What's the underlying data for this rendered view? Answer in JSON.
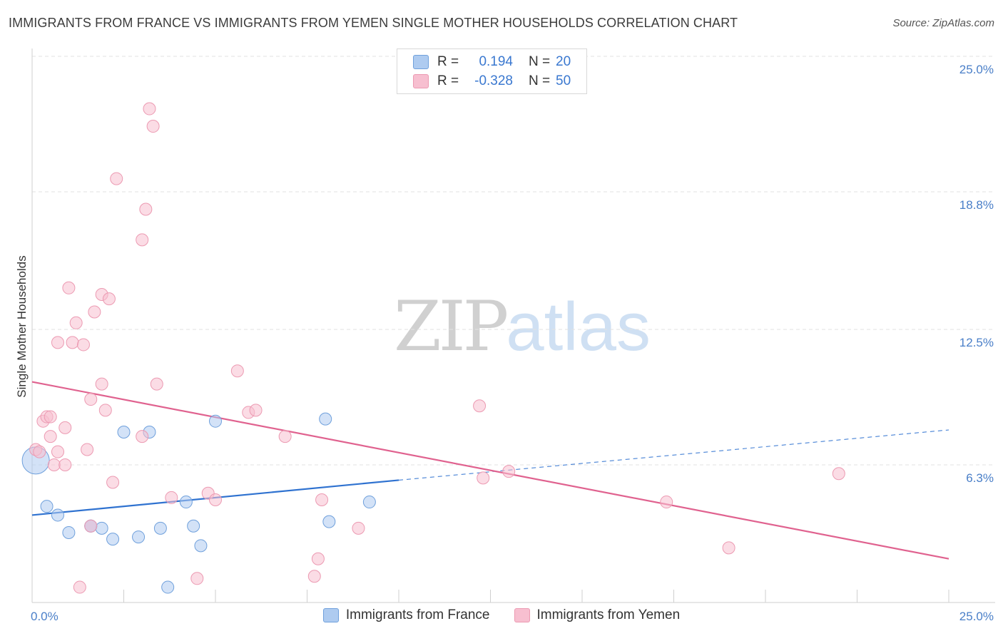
{
  "title": "IMMIGRANTS FROM FRANCE VS IMMIGRANTS FROM YEMEN SINGLE MOTHER HOUSEHOLDS CORRELATION CHART",
  "source": "Source: ZipAtlas.com",
  "watermark": {
    "zip": "ZIP",
    "atlas": "atlas"
  },
  "legend": {
    "rows": [
      {
        "r_label": "R =",
        "r_value": "0.194",
        "n_label": "N =",
        "n_value": "20",
        "color": "#aecbf0"
      },
      {
        "r_label": "R =",
        "r_value": "-0.328",
        "n_label": "N =",
        "n_value": "50",
        "color": "#f7bfd0"
      }
    ]
  },
  "bottom_legend": [
    {
      "label": "Immigrants from France",
      "color": "#aecbf0"
    },
    {
      "label": "Immigrants from Yemen",
      "color": "#f7bfd0"
    }
  ],
  "chart_data": {
    "type": "scatter",
    "title": "IMMIGRANTS FROM FRANCE VS IMMIGRANTS FROM YEMEN SINGLE MOTHER HOUSEHOLDS CORRELATION CHART",
    "xlabel": "",
    "ylabel": "Single Mother Households",
    "xlim": [
      0,
      25
    ],
    "ylim": [
      0,
      25
    ],
    "x_tick_labels": [
      {
        "value": 0,
        "label": "0.0%"
      },
      {
        "value": 25,
        "label": "25.0%"
      }
    ],
    "y_tick_labels": [
      {
        "value": 6.3,
        "label": "6.3%"
      },
      {
        "value": 12.5,
        "label": "12.5%"
      },
      {
        "value": 18.8,
        "label": "18.8%"
      },
      {
        "value": 25.0,
        "label": "25.0%"
      }
    ],
    "grid": true,
    "legend_position": "top-center",
    "series": [
      {
        "name": "Immigrants from France",
        "color": "#aecbf0",
        "stroke": "#6fa0dc",
        "line_color": "#2f72d0",
        "trend": {
          "x_start": 0,
          "y_start": 4.0,
          "x_solid_end": 10,
          "y_solid_end": 5.6,
          "x_end": 25,
          "y_end": 7.9
        },
        "points": [
          {
            "x": 0.1,
            "y": 6.5,
            "big": true
          },
          {
            "x": 0.4,
            "y": 4.4
          },
          {
            "x": 0.7,
            "y": 4.0
          },
          {
            "x": 1.0,
            "y": 3.2
          },
          {
            "x": 1.6,
            "y": 3.5
          },
          {
            "x": 1.9,
            "y": 3.4
          },
          {
            "x": 2.2,
            "y": 2.9
          },
          {
            "x": 2.5,
            "y": 7.8
          },
          {
            "x": 2.9,
            "y": 3.0
          },
          {
            "x": 3.2,
            "y": 7.8
          },
          {
            "x": 3.5,
            "y": 3.4
          },
          {
            "x": 4.2,
            "y": 4.6
          },
          {
            "x": 4.4,
            "y": 3.5
          },
          {
            "x": 4.6,
            "y": 2.6
          },
          {
            "x": 5.0,
            "y": 8.3
          },
          {
            "x": 8.1,
            "y": 3.7
          },
          {
            "x": 8.0,
            "y": 8.4
          },
          {
            "x": 9.2,
            "y": 4.6
          },
          {
            "x": 3.7,
            "y": 0.7
          },
          {
            "x": 1.6,
            "y": 3.5
          }
        ]
      },
      {
        "name": "Immigrants from Yemen",
        "color": "#f7bfd0",
        "stroke": "#ec9ab2",
        "line_color": "#e0628f",
        "trend": {
          "x_start": 0,
          "y_start": 10.1,
          "x_end": 25,
          "y_end": 2.0
        },
        "points": [
          {
            "x": 0.1,
            "y": 7.0
          },
          {
            "x": 0.2,
            "y": 6.9
          },
          {
            "x": 0.3,
            "y": 8.3
          },
          {
            "x": 0.4,
            "y": 8.5
          },
          {
            "x": 0.5,
            "y": 8.5
          },
          {
            "x": 0.5,
            "y": 7.6
          },
          {
            "x": 0.6,
            "y": 6.3
          },
          {
            "x": 0.7,
            "y": 6.9
          },
          {
            "x": 0.7,
            "y": 11.9
          },
          {
            "x": 0.9,
            "y": 8.0
          },
          {
            "x": 0.9,
            "y": 6.3
          },
          {
            "x": 1.0,
            "y": 14.4
          },
          {
            "x": 1.1,
            "y": 11.9
          },
          {
            "x": 1.2,
            "y": 12.8
          },
          {
            "x": 1.4,
            "y": 11.8
          },
          {
            "x": 1.5,
            "y": 7.0
          },
          {
            "x": 1.6,
            "y": 9.3
          },
          {
            "x": 1.7,
            "y": 13.3
          },
          {
            "x": 1.9,
            "y": 14.1
          },
          {
            "x": 1.9,
            "y": 10.0
          },
          {
            "x": 2.0,
            "y": 8.8
          },
          {
            "x": 2.1,
            "y": 13.9
          },
          {
            "x": 2.2,
            "y": 5.5
          },
          {
            "x": 2.3,
            "y": 19.4
          },
          {
            "x": 3.0,
            "y": 16.6
          },
          {
            "x": 3.0,
            "y": 7.6
          },
          {
            "x": 3.1,
            "y": 18.0
          },
          {
            "x": 3.2,
            "y": 22.6
          },
          {
            "x": 3.3,
            "y": 21.8
          },
          {
            "x": 3.4,
            "y": 10.0
          },
          {
            "x": 3.8,
            "y": 4.8
          },
          {
            "x": 4.5,
            "y": 1.1
          },
          {
            "x": 4.8,
            "y": 5.0
          },
          {
            "x": 5.0,
            "y": 4.7
          },
          {
            "x": 5.6,
            "y": 10.6
          },
          {
            "x": 5.9,
            "y": 8.7
          },
          {
            "x": 6.1,
            "y": 8.8
          },
          {
            "x": 6.9,
            "y": 7.6
          },
          {
            "x": 7.7,
            "y": 1.2
          },
          {
            "x": 7.8,
            "y": 2.0
          },
          {
            "x": 7.9,
            "y": 4.7
          },
          {
            "x": 8.9,
            "y": 3.4
          },
          {
            "x": 12.2,
            "y": 9.0
          },
          {
            "x": 12.3,
            "y": 5.7
          },
          {
            "x": 13.0,
            "y": 6.0
          },
          {
            "x": 17.3,
            "y": 4.6
          },
          {
            "x": 19.0,
            "y": 2.5
          },
          {
            "x": 22.0,
            "y": 5.9
          },
          {
            "x": 1.3,
            "y": 0.7
          },
          {
            "x": 1.6,
            "y": 3.5
          }
        ]
      }
    ]
  }
}
